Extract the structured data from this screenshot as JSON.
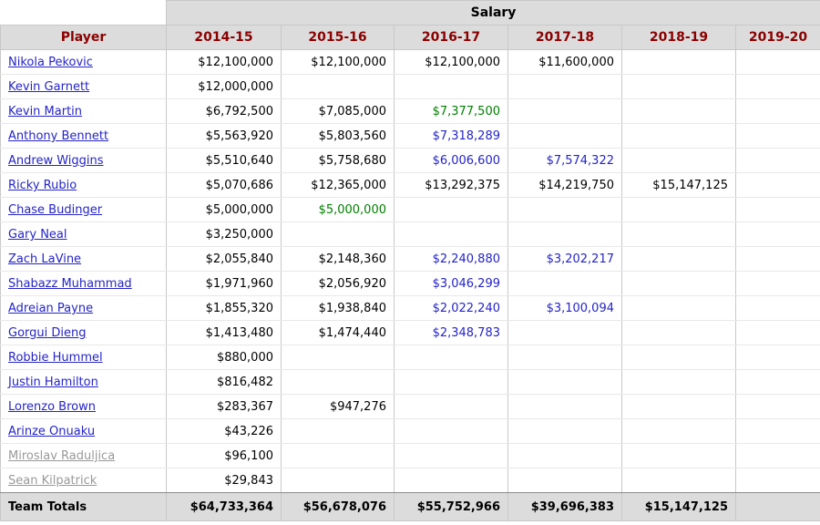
{
  "table": {
    "group_header": "Salary",
    "columns": [
      "Player",
      "2014-15",
      "2015-16",
      "2016-17",
      "2017-18",
      "2018-19",
      "2019-20"
    ],
    "rows": [
      {
        "player": "Nikola Pekovic",
        "inactive": false,
        "salaries": [
          "$12,100,000",
          "$12,100,000",
          "$12,100,000",
          "$11,600,000",
          "",
          ""
        ]
      },
      {
        "player": "Kevin Garnett",
        "inactive": false,
        "salaries": [
          "$12,000,000",
          "",
          "",
          "",
          "",
          ""
        ]
      },
      {
        "player": "Kevin Martin",
        "inactive": false,
        "salaries": [
          "$6,792,500",
          "$7,085,000",
          {
            "text": "$7,377,500",
            "style": "green"
          },
          "",
          "",
          ""
        ]
      },
      {
        "player": "Anthony Bennett",
        "inactive": false,
        "salaries": [
          "$5,563,920",
          "$5,803,560",
          {
            "text": "$7,318,289",
            "style": "blue"
          },
          "",
          "",
          ""
        ]
      },
      {
        "player": "Andrew Wiggins",
        "inactive": false,
        "salaries": [
          "$5,510,640",
          "$5,758,680",
          {
            "text": "$6,006,600",
            "style": "blue"
          },
          {
            "text": "$7,574,322",
            "style": "blue"
          },
          "",
          ""
        ]
      },
      {
        "player": "Ricky Rubio",
        "inactive": false,
        "salaries": [
          "$5,070,686",
          "$12,365,000",
          "$13,292,375",
          "$14,219,750",
          "$15,147,125",
          ""
        ]
      },
      {
        "player": "Chase Budinger",
        "inactive": false,
        "salaries": [
          "$5,000,000",
          {
            "text": "$5,000,000",
            "style": "green"
          },
          "",
          "",
          "",
          ""
        ]
      },
      {
        "player": "Gary Neal",
        "inactive": false,
        "salaries": [
          "$3,250,000",
          "",
          "",
          "",
          "",
          ""
        ]
      },
      {
        "player": "Zach LaVine",
        "inactive": false,
        "salaries": [
          "$2,055,840",
          "$2,148,360",
          {
            "text": "$2,240,880",
            "style": "blue"
          },
          {
            "text": "$3,202,217",
            "style": "blue"
          },
          "",
          ""
        ]
      },
      {
        "player": "Shabazz Muhammad",
        "inactive": false,
        "salaries": [
          "$1,971,960",
          "$2,056,920",
          {
            "text": "$3,046,299",
            "style": "blue"
          },
          "",
          "",
          ""
        ]
      },
      {
        "player": "Adreian Payne",
        "inactive": false,
        "salaries": [
          "$1,855,320",
          "$1,938,840",
          {
            "text": "$2,022,240",
            "style": "blue"
          },
          {
            "text": "$3,100,094",
            "style": "blue"
          },
          "",
          ""
        ]
      },
      {
        "player": "Gorgui Dieng",
        "inactive": false,
        "salaries": [
          "$1,413,480",
          "$1,474,440",
          {
            "text": "$2,348,783",
            "style": "blue"
          },
          "",
          "",
          ""
        ]
      },
      {
        "player": "Robbie Hummel",
        "inactive": false,
        "salaries": [
          "$880,000",
          "",
          "",
          "",
          "",
          ""
        ]
      },
      {
        "player": "Justin Hamilton",
        "inactive": false,
        "salaries": [
          "$816,482",
          "",
          "",
          "",
          "",
          ""
        ]
      },
      {
        "player": "Lorenzo Brown",
        "inactive": false,
        "salaries": [
          "$283,367",
          "$947,276",
          "",
          "",
          "",
          ""
        ]
      },
      {
        "player": "Arinze Onuaku",
        "inactive": false,
        "salaries": [
          "$43,226",
          "",
          "",
          "",
          "",
          ""
        ]
      },
      {
        "player": "Miroslav Raduljica",
        "inactive": true,
        "salaries": [
          "$96,100",
          "",
          "",
          "",
          "",
          ""
        ]
      },
      {
        "player": "Sean Kilpatrick",
        "inactive": true,
        "salaries": [
          "$29,843",
          "",
          "",
          "",
          "",
          ""
        ]
      }
    ],
    "totals": {
      "label": "Team Totals",
      "values": [
        "$64,733,364",
        "$56,678,076",
        "$55,752,966",
        "$39,696,383",
        "$15,147,125",
        ""
      ]
    }
  },
  "colors": {
    "header_bg": "#dcdcdc",
    "header_text": "#8b0000",
    "link_blue": "#2424c8",
    "option_green": "#008000",
    "option_blue": "#2424c8",
    "inactive_gray": "#999999"
  }
}
